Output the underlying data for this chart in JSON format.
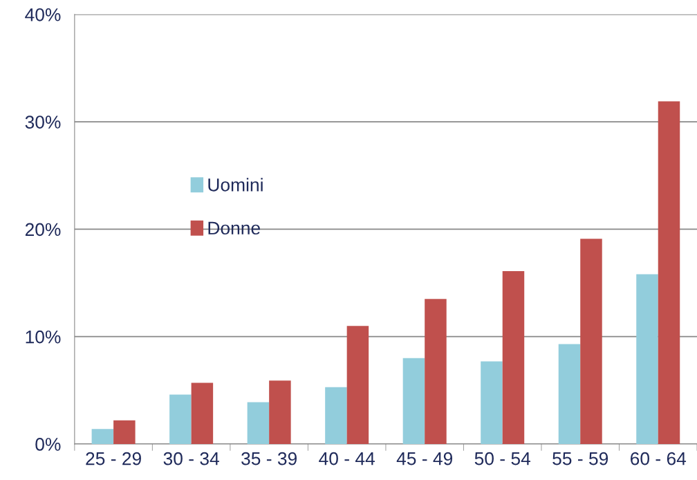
{
  "chart_data": {
    "type": "bar",
    "categories": [
      "25 - 29",
      "30 - 34",
      "35 - 39",
      "40 - 44",
      "45 - 49",
      "50 - 54",
      "55 - 59",
      "60 - 64"
    ],
    "series": [
      {
        "name": "Uomini",
        "color": "#92cddc",
        "values": [
          1.4,
          4.6,
          3.9,
          5.3,
          8.0,
          7.7,
          9.3,
          15.8
        ]
      },
      {
        "name": "Donne",
        "color": "#c0504d",
        "values": [
          2.2,
          5.7,
          5.9,
          11.0,
          13.5,
          16.1,
          19.1,
          31.9
        ]
      }
    ],
    "ylim": [
      0,
      40
    ],
    "yticks": [
      {
        "value": 0,
        "label": "0%"
      },
      {
        "value": 10,
        "label": "10%"
      },
      {
        "value": 20,
        "label": "20%"
      },
      {
        "value": 30,
        "label": "30%"
      },
      {
        "value": 40,
        "label": "40%"
      }
    ],
    "grid": "y",
    "legend": "center left"
  }
}
